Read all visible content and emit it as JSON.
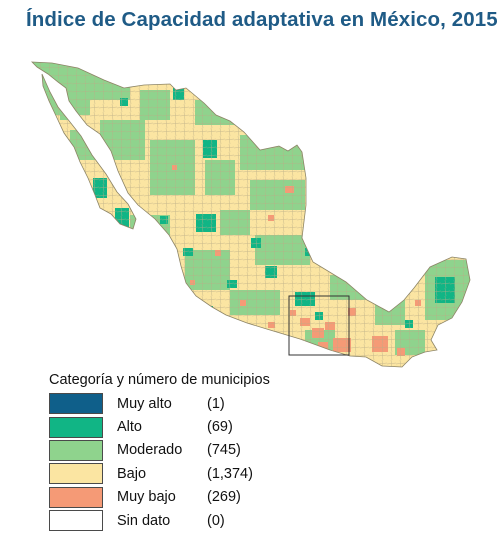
{
  "title": "Índice de Capacidad adaptativa en México, 2015",
  "map": {
    "country": "México",
    "level": "municipios",
    "palette": {
      "muy_alto": "#0f5f8a",
      "alto": "#11b585",
      "moderado": "#8fd38d",
      "bajo": "#fbe5a2",
      "muy_bajo": "#f59a76",
      "sin_dato": "#ffffff",
      "border": "#9a8f6e",
      "frame": "#333333"
    },
    "highlight_box": "region sur (Oaxaca/Guerrero)"
  },
  "legend": {
    "title": "Categoría y número de municipios",
    "items": [
      {
        "label": "Muy alto",
        "count": "(1)",
        "color": "#0f5f8a"
      },
      {
        "label": "Alto",
        "count": "(69)",
        "color": "#11b585"
      },
      {
        "label": "Moderado",
        "count": "(745)",
        "color": "#8fd38d"
      },
      {
        "label": "Bajo",
        "count": "(1,374)",
        "color": "#fbe5a2"
      },
      {
        "label": "Muy bajo",
        "count": "(269)",
        "color": "#f59a76"
      },
      {
        "label": "Sin dato",
        "count": "(0)",
        "color": "#ffffff"
      }
    ]
  }
}
